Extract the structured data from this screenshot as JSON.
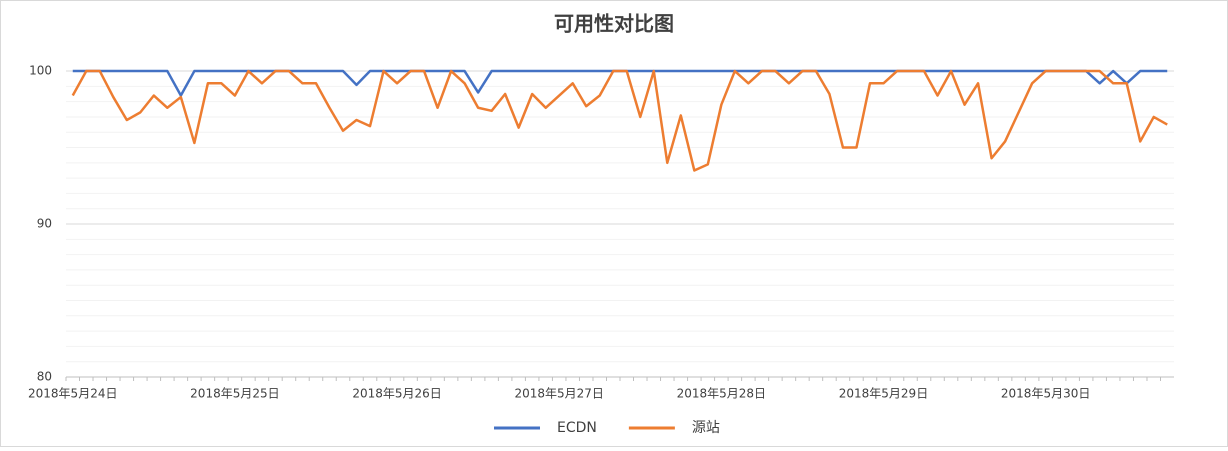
{
  "chart_data": {
    "type": "line",
    "title": "可用性对比图",
    "categories": [
      "2018年5月24日",
      null,
      null,
      null,
      null,
      null,
      null,
      null,
      null,
      null,
      null,
      null,
      "2018年5月25日",
      null,
      null,
      null,
      null,
      null,
      null,
      null,
      null,
      null,
      null,
      null,
      "2018年5月26日",
      null,
      null,
      null,
      null,
      null,
      null,
      null,
      null,
      null,
      null,
      null,
      "2018年5月27日",
      null,
      null,
      null,
      null,
      null,
      null,
      null,
      null,
      null,
      null,
      null,
      "2018年5月28日",
      null,
      null,
      null,
      null,
      null,
      null,
      null,
      null,
      null,
      null,
      null,
      "2018年5月29日",
      null,
      null,
      null,
      null,
      null,
      null,
      null,
      null,
      null,
      null,
      null,
      "2018年5月30日",
      null,
      null,
      null,
      null,
      null,
      null,
      null,
      null,
      null
    ],
    "series": [
      {
        "name": "ECDN",
        "color": "#4472c4",
        "values": [
          100,
          100,
          100,
          100,
          100,
          100,
          100,
          100,
          98.4,
          100,
          100,
          100,
          100,
          100,
          100,
          100,
          100,
          100,
          100,
          100,
          100,
          99.1,
          100,
          100,
          100,
          100,
          100,
          100,
          100,
          100,
          98.6,
          100,
          100,
          100,
          100,
          100,
          100,
          100,
          100,
          100,
          100,
          100,
          100,
          100,
          100,
          100,
          100,
          100,
          100,
          100,
          100,
          100,
          100,
          100,
          100,
          100,
          100,
          100,
          100,
          100,
          100,
          100,
          100,
          100,
          100,
          100,
          100,
          100,
          100,
          100,
          100,
          100,
          100,
          100,
          100,
          100,
          99.2,
          100,
          99.2,
          100,
          100,
          100
        ]
      },
      {
        "name": "源站",
        "color": "#ed7d31",
        "values": [
          98.4,
          100,
          100,
          98.3,
          96.8,
          97.3,
          98.4,
          97.6,
          98.3,
          95.3,
          99.2,
          99.2,
          98.4,
          100,
          99.2,
          100,
          100,
          99.2,
          99.2,
          97.6,
          96.1,
          96.8,
          96.4,
          100,
          99.2,
          100,
          100,
          97.6,
          100,
          99.2,
          97.6,
          97.4,
          98.5,
          96.3,
          98.5,
          97.6,
          98.4,
          99.2,
          97.7,
          98.4,
          100,
          100,
          97.0,
          100,
          94.0,
          97.1,
          93.5,
          93.9,
          97.8,
          100,
          99.2,
          100,
          100,
          99.2,
          100,
          100,
          98.5,
          95.0,
          95.0,
          99.2,
          99.2,
          100,
          100,
          100,
          98.4,
          100,
          97.8,
          99.2,
          94.3,
          95.4,
          97.3,
          99.2,
          100,
          100,
          100,
          100,
          100,
          99.2,
          99.2,
          95.4,
          97.0,
          96.5
        ]
      }
    ],
    "ylim": [
      80,
      100.5
    ],
    "yticks": [
      80,
      90,
      100
    ],
    "grid": true,
    "minor_grid": 1,
    "legend": "bottom"
  }
}
